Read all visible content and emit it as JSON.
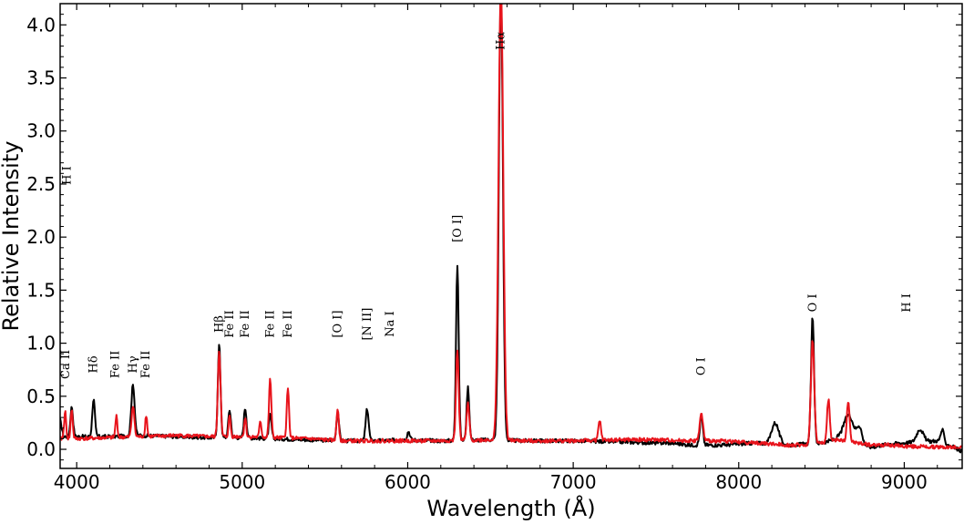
{
  "chart_data": {
    "type": "line",
    "xlabel": "Wavelength (Å)",
    "ylabel": "Relative Intensity",
    "xlim": [
      3900,
      9350
    ],
    "ylim": [
      -0.18,
      4.2
    ],
    "x_ticks": [
      4000,
      5000,
      6000,
      7000,
      8000,
      9000
    ],
    "y_ticks": [
      0.0,
      0.5,
      1.0,
      1.5,
      2.0,
      2.5,
      3.0,
      3.5,
      4.0
    ],
    "x_tick_labels": [
      "4000",
      "5000",
      "6000",
      "7000",
      "8000",
      "9000"
    ],
    "y_tick_labels": [
      "0.0",
      "0.5",
      "1.0",
      "1.5",
      "2.0",
      "2.5",
      "3.0",
      "3.5",
      "4.0"
    ],
    "grid": false,
    "legend": "none",
    "series": [
      {
        "color": "#000000",
        "continuum": [
          [
            3900,
            0.28
          ],
          [
            3920,
            0.12
          ],
          [
            4000,
            0.12
          ],
          [
            4200,
            0.12
          ],
          [
            4400,
            0.13
          ],
          [
            4600,
            0.12
          ],
          [
            4800,
            0.11
          ],
          [
            5000,
            0.11
          ],
          [
            5400,
            0.09
          ],
          [
            5600,
            0.08
          ],
          [
            5800,
            0.08
          ],
          [
            6000,
            0.09
          ],
          [
            6200,
            0.08
          ],
          [
            6500,
            0.09
          ],
          [
            6700,
            0.08
          ],
          [
            7000,
            0.08
          ],
          [
            7300,
            0.07
          ],
          [
            7500,
            0.06
          ],
          [
            7600,
            0.06
          ],
          [
            7700,
            0.04
          ],
          [
            7900,
            0.04
          ],
          [
            8100,
            0.06
          ],
          [
            8300,
            0.04
          ],
          [
            8400,
            0.05
          ],
          [
            8500,
            0.06
          ],
          [
            8600,
            0.1
          ],
          [
            8800,
            0.02
          ],
          [
            8900,
            0.05
          ],
          [
            9000,
            0.06
          ],
          [
            9200,
            0.08
          ],
          [
            9300,
            0.02
          ],
          [
            9350,
            -0.02
          ]
        ],
        "peaks": [
          [
            3970,
            0.28,
            8
          ],
          [
            4102,
            0.35,
            8
          ],
          [
            4340,
            0.48,
            10
          ],
          [
            4861,
            0.88,
            8
          ],
          [
            4924,
            0.26,
            8
          ],
          [
            5018,
            0.28,
            8
          ],
          [
            5169,
            0.22,
            8
          ],
          [
            5577,
            0.27,
            8
          ],
          [
            5755,
            0.3,
            9
          ],
          [
            6005,
            0.08,
            8
          ],
          [
            6300,
            1.66,
            8
          ],
          [
            6364,
            0.5,
            8
          ],
          [
            6563,
            4.3,
            12
          ],
          [
            7774,
            0.27,
            9
          ],
          [
            8220,
            0.2,
            22
          ],
          [
            8446,
            1.2,
            9
          ],
          [
            8665,
            0.25,
            30
          ],
          [
            8730,
            0.15,
            15
          ],
          [
            9095,
            0.12,
            20
          ],
          [
            9230,
            0.12,
            10
          ]
        ]
      },
      {
        "color": "#e8141c",
        "continuum": [
          [
            3900,
            0.1
          ],
          [
            4000,
            0.1
          ],
          [
            4200,
            0.11
          ],
          [
            4400,
            0.12
          ],
          [
            4600,
            0.13
          ],
          [
            4800,
            0.12
          ],
          [
            5000,
            0.12
          ],
          [
            5400,
            0.1
          ],
          [
            5600,
            0.08
          ],
          [
            5800,
            0.08
          ],
          [
            6000,
            0.08
          ],
          [
            6200,
            0.08
          ],
          [
            6500,
            0.09
          ],
          [
            6700,
            0.08
          ],
          [
            7000,
            0.08
          ],
          [
            7300,
            0.09
          ],
          [
            7500,
            0.09
          ],
          [
            7700,
            0.08
          ],
          [
            7900,
            0.08
          ],
          [
            8100,
            0.06
          ],
          [
            8300,
            0.04
          ],
          [
            8400,
            0.04
          ],
          [
            8500,
            0.06
          ],
          [
            8600,
            0.09
          ],
          [
            8800,
            0.04
          ],
          [
            8900,
            0.04
          ],
          [
            9000,
            0.03
          ],
          [
            9200,
            0.02
          ],
          [
            9300,
            0.02
          ],
          [
            9350,
            0.02
          ]
        ],
        "peaks": [
          [
            3930,
            0.26,
            6
          ],
          [
            3970,
            0.28,
            6
          ],
          [
            4240,
            0.2,
            6
          ],
          [
            4340,
            0.3,
            8
          ],
          [
            4420,
            0.2,
            6
          ],
          [
            4861,
            0.82,
            8
          ],
          [
            4924,
            0.2,
            6
          ],
          [
            5018,
            0.18,
            6
          ],
          [
            5110,
            0.15,
            6
          ],
          [
            5169,
            0.55,
            7
          ],
          [
            5276,
            0.46,
            7
          ],
          [
            5577,
            0.3,
            7
          ],
          [
            6300,
            0.86,
            8
          ],
          [
            6364,
            0.35,
            8
          ],
          [
            6563,
            4.3,
            14
          ],
          [
            7160,
            0.18,
            8
          ],
          [
            7774,
            0.25,
            10
          ],
          [
            8446,
            0.98,
            10
          ],
          [
            8542,
            0.4,
            8
          ],
          [
            8662,
            0.38,
            8
          ]
        ]
      }
    ],
    "annotations": [
      {
        "text": "Ca II",
        "x": 3933,
        "y": 0.8,
        "rotated": true
      },
      {
        "text": "Hδ",
        "x": 4102,
        "y": 0.8,
        "rotated": true
      },
      {
        "text": "Fe II",
        "x": 4233,
        "y": 0.8,
        "rotated": true
      },
      {
        "text": "Hγ",
        "x": 4340,
        "y": 0.8,
        "rotated": true
      },
      {
        "text": "Fe II",
        "x": 4417,
        "y": 0.8,
        "rotated": true
      },
      {
        "text": "Hβ",
        "x": 4861,
        "y": 1.18,
        "rotated": true
      },
      {
        "text": "Fe II",
        "x": 4924,
        "y": 1.18,
        "rotated": true
      },
      {
        "text": "Fe II",
        "x": 5018,
        "y": 1.18,
        "rotated": true
      },
      {
        "text": "Fe II",
        "x": 5169,
        "y": 1.18,
        "rotated": true
      },
      {
        "text": "Fe II",
        "x": 5276,
        "y": 1.18,
        "rotated": true
      },
      {
        "text": "[O I]",
        "x": 5577,
        "y": 1.18,
        "rotated": true
      },
      {
        "text": "[N II]",
        "x": 5755,
        "y": 1.18,
        "rotated": true
      },
      {
        "text": "Na I",
        "x": 5893,
        "y": 1.18,
        "rotated": true
      },
      {
        "text": "[O I]",
        "x": 6300,
        "y": 2.08,
        "rotated": true
      },
      {
        "text": "Hα",
        "x": 6563,
        "y": 3.85,
        "rotated": true
      },
      {
        "text": "O I",
        "x": 7774,
        "y": 0.78,
        "rotated": true
      },
      {
        "text": "O I",
        "x": 8446,
        "y": 1.38,
        "rotated": true
      },
      {
        "text": "H I",
        "x": 9015,
        "y": 1.38,
        "rotated": true
      },
      {
        "text": "H I",
        "x": 3940,
        "y": 2.58,
        "rotated": true
      }
    ]
  }
}
